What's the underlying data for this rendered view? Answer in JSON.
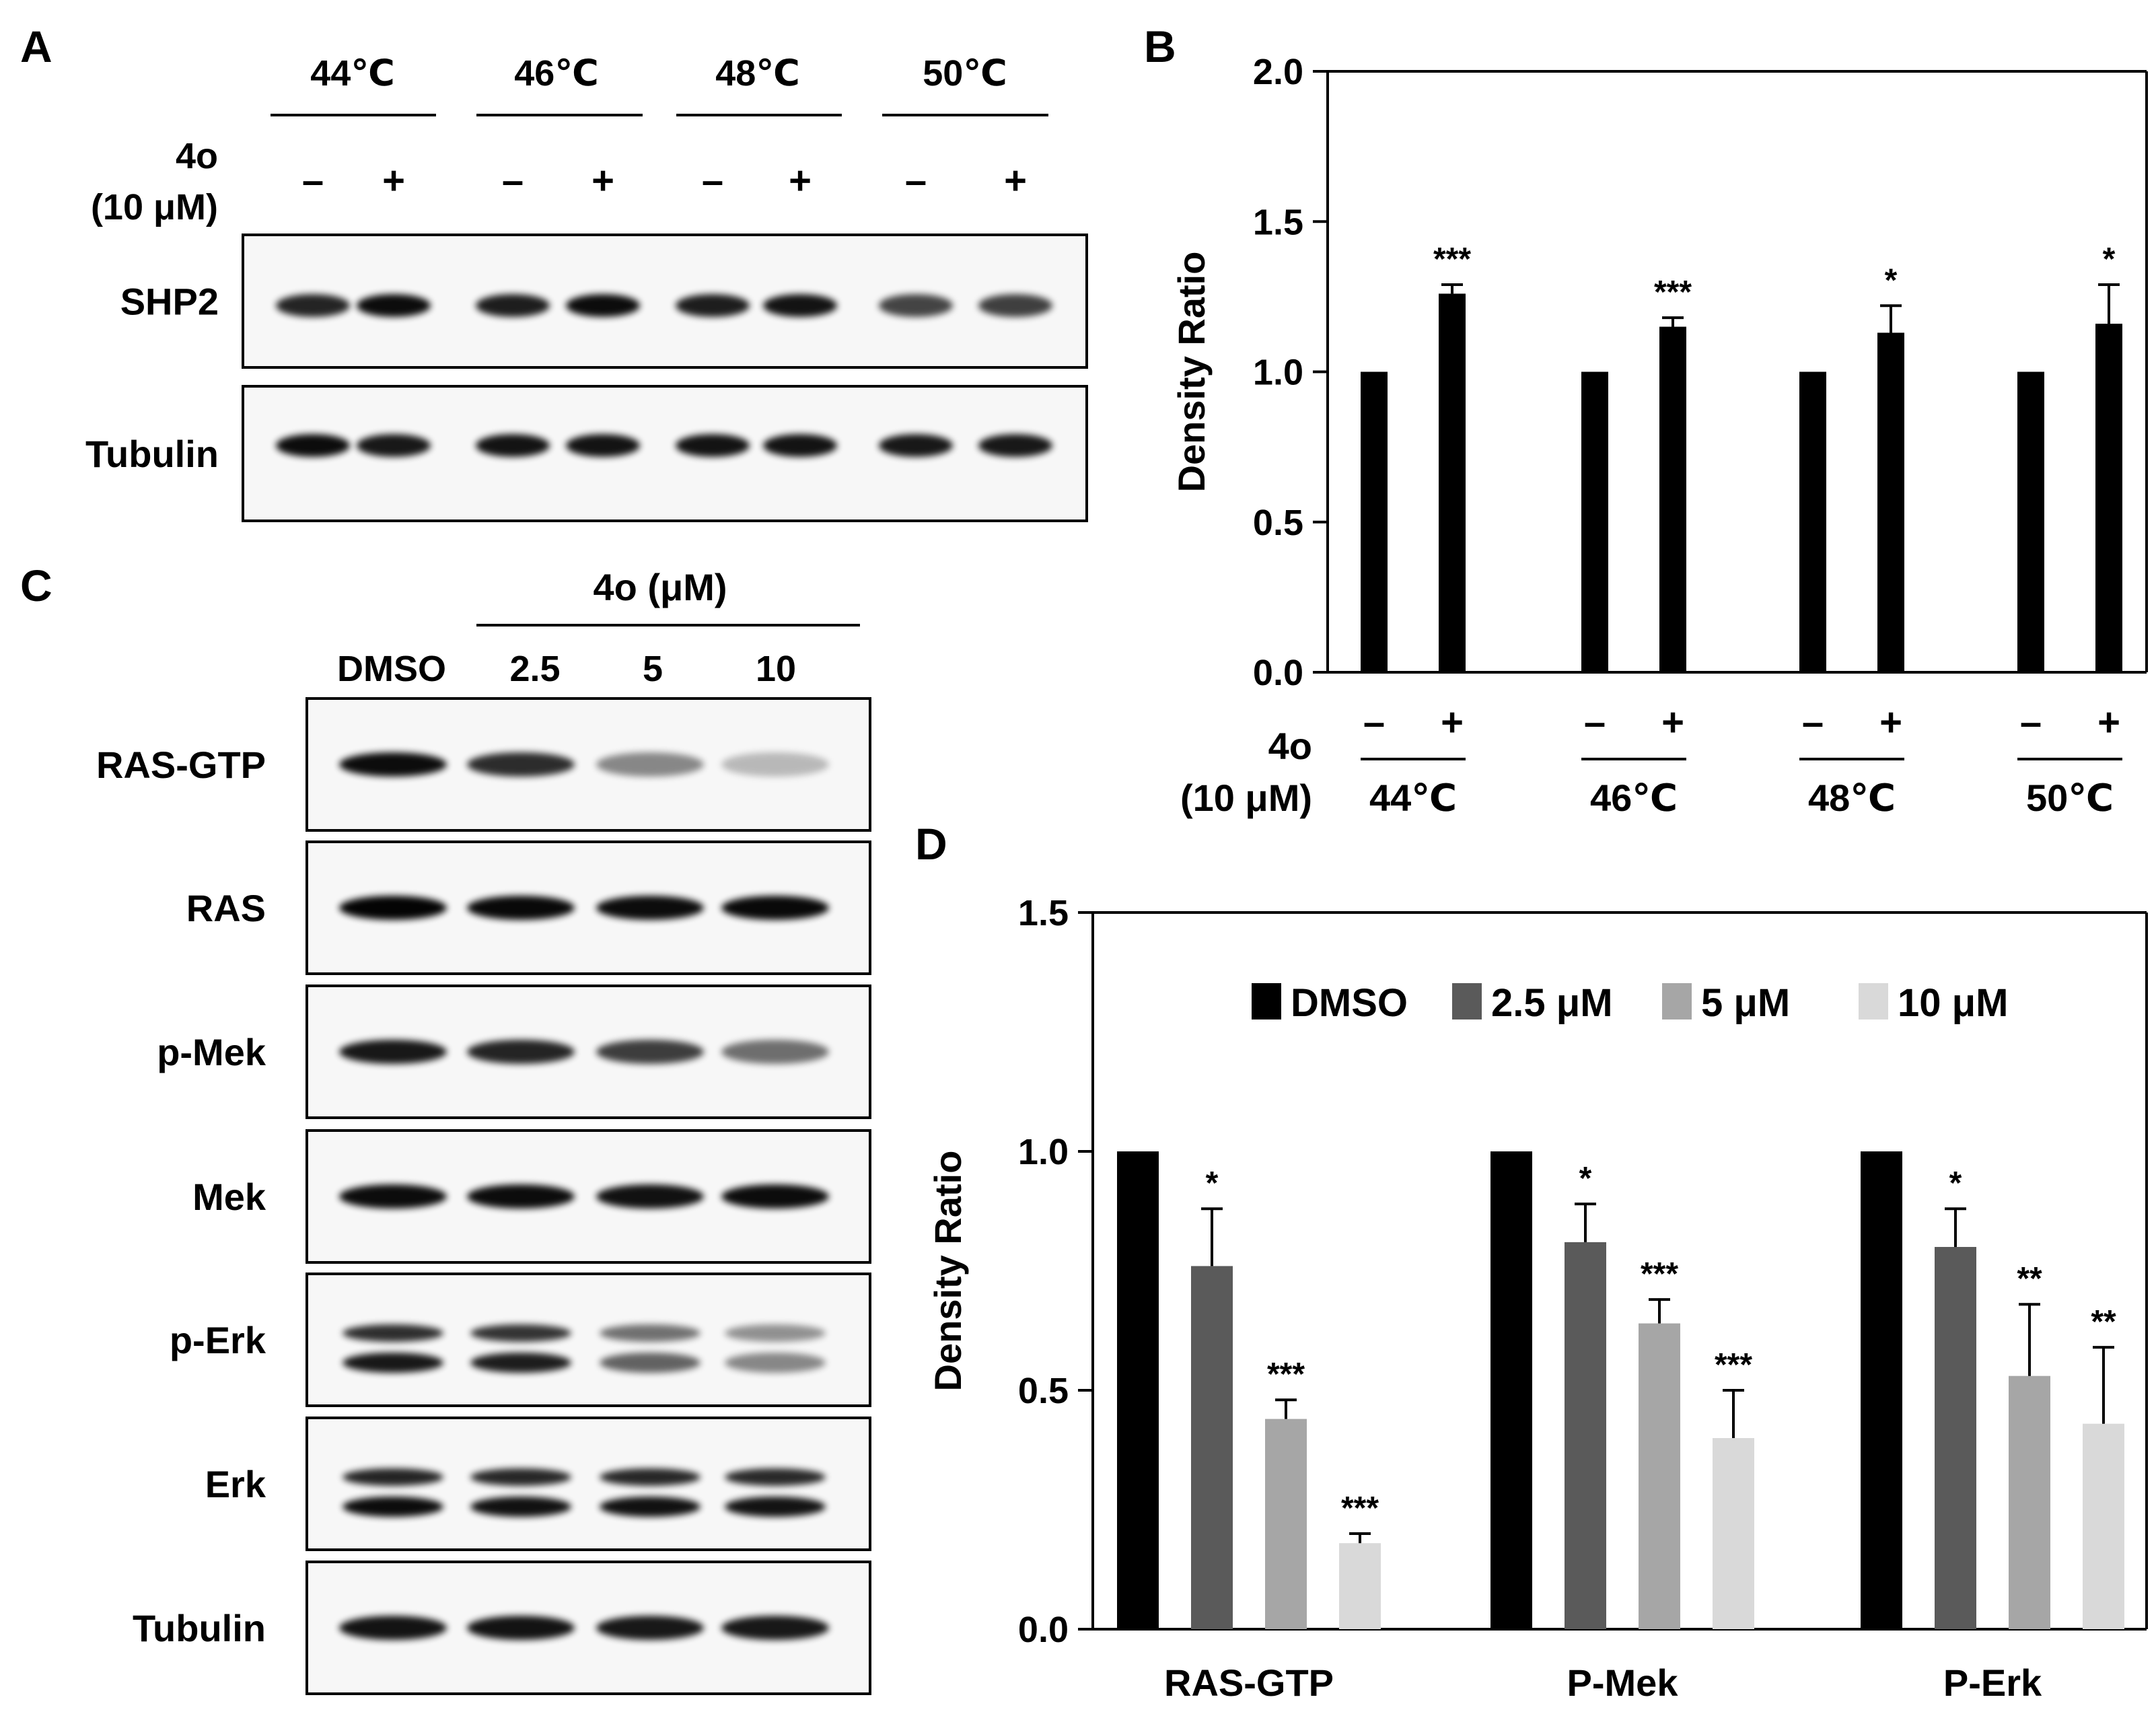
{
  "panels": {
    "A": {
      "letter": "A",
      "temps": [
        "44℃",
        "46℃",
        "48℃",
        "50℃"
      ],
      "treat_label": [
        "4o",
        "(10 μM)"
      ],
      "signs": [
        "–",
        "+",
        "–",
        "+",
        "–",
        "+",
        "–",
        "+"
      ],
      "blots": [
        {
          "label": "SHP2",
          "intensity": [
            0.85,
            0.95,
            0.88,
            0.95,
            0.88,
            0.92,
            0.72,
            0.74
          ]
        },
        {
          "label": "Tubulin",
          "intensity": [
            0.95,
            0.9,
            0.92,
            0.92,
            0.92,
            0.92,
            0.9,
            0.9
          ]
        }
      ]
    },
    "B": {
      "letter": "B"
    },
    "C": {
      "letter": "C",
      "treat_header": "4o (μM)",
      "lanes": [
        "DMSO",
        "2.5",
        "5",
        "10"
      ],
      "blots": [
        {
          "label": "RAS-GTP",
          "intensity": [
            0.95,
            0.82,
            0.45,
            0.25
          ],
          "double": false
        },
        {
          "label": "RAS",
          "intensity": [
            0.98,
            0.96,
            0.95,
            0.96
          ],
          "double": false
        },
        {
          "label": "p-Mek",
          "intensity": [
            0.9,
            0.85,
            0.75,
            0.55
          ],
          "double": false
        },
        {
          "label": "Mek",
          "intensity": [
            0.95,
            0.95,
            0.93,
            0.95
          ],
          "double": false
        },
        {
          "label": "p-Erk",
          "intensity": [
            0.9,
            0.88,
            0.6,
            0.45
          ],
          "double": true
        },
        {
          "label": "Erk",
          "intensity": [
            0.95,
            0.93,
            0.93,
            0.92
          ],
          "double": true
        },
        {
          "label": "Tubulin",
          "intensity": [
            0.92,
            0.92,
            0.9,
            0.9
          ],
          "double": false
        }
      ]
    },
    "D": {
      "letter": "D"
    }
  },
  "chart_data": [
    {
      "panel": "B",
      "type": "bar",
      "ylabel": "Density Ratio",
      "ylim": [
        0,
        2.0
      ],
      "yticks": [
        0.0,
        0.5,
        1.0,
        1.5,
        2.0
      ],
      "ytick_labels": [
        "0.0",
        "0.5",
        "1.0",
        "1.5",
        "2.0"
      ],
      "categories": [
        "44℃",
        "46℃",
        "48℃",
        "50℃"
      ],
      "treat_label": [
        "4o",
        "(10 μM)"
      ],
      "signs": [
        "–",
        "+"
      ],
      "series": [
        {
          "values": [
            1.0,
            1.0,
            1.0,
            1.0
          ],
          "errors": [
            0,
            0,
            0,
            0
          ],
          "sig": [
            "",
            "",
            "",
            ""
          ],
          "color": "#000000"
        },
        {
          "values": [
            1.26,
            1.15,
            1.13,
            1.16
          ],
          "errors": [
            0.03,
            0.03,
            0.09,
            0.13
          ],
          "sig": [
            "***",
            "***",
            "*",
            "*"
          ],
          "color": "#000000"
        }
      ],
      "grid": false
    },
    {
      "panel": "D",
      "type": "bar",
      "ylabel": "Density Ratio",
      "ylim": [
        0,
        1.5
      ],
      "yticks": [
        0.0,
        0.5,
        1.0,
        1.5
      ],
      "ytick_labels": [
        "0.0",
        "0.5",
        "1.0",
        "1.5"
      ],
      "categories": [
        "RAS-GTP",
        "P-Mek",
        "P-Erk"
      ],
      "series": [
        {
          "name": "DMSO",
          "values": [
            1.0,
            1.0,
            1.0
          ],
          "errors": [
            0,
            0,
            0
          ],
          "sig": [
            "",
            "",
            ""
          ],
          "color": "#000000"
        },
        {
          "name": "2.5 μM",
          "values": [
            0.76,
            0.81,
            0.8
          ],
          "errors": [
            0.12,
            0.08,
            0.08
          ],
          "sig": [
            "*",
            "*",
            "*"
          ],
          "color": "#5a5a5a"
        },
        {
          "name": "5 μM",
          "values": [
            0.44,
            0.64,
            0.53
          ],
          "errors": [
            0.04,
            0.05,
            0.15
          ],
          "sig": [
            "***",
            "***",
            "**"
          ],
          "color": "#a6a6a6"
        },
        {
          "name": "10 μM",
          "values": [
            0.18,
            0.4,
            0.43
          ],
          "errors": [
            0.02,
            0.1,
            0.16
          ],
          "sig": [
            "***",
            "***",
            "**"
          ],
          "color": "#d9d9d9"
        }
      ],
      "legend": "top-center",
      "grid": false
    }
  ]
}
